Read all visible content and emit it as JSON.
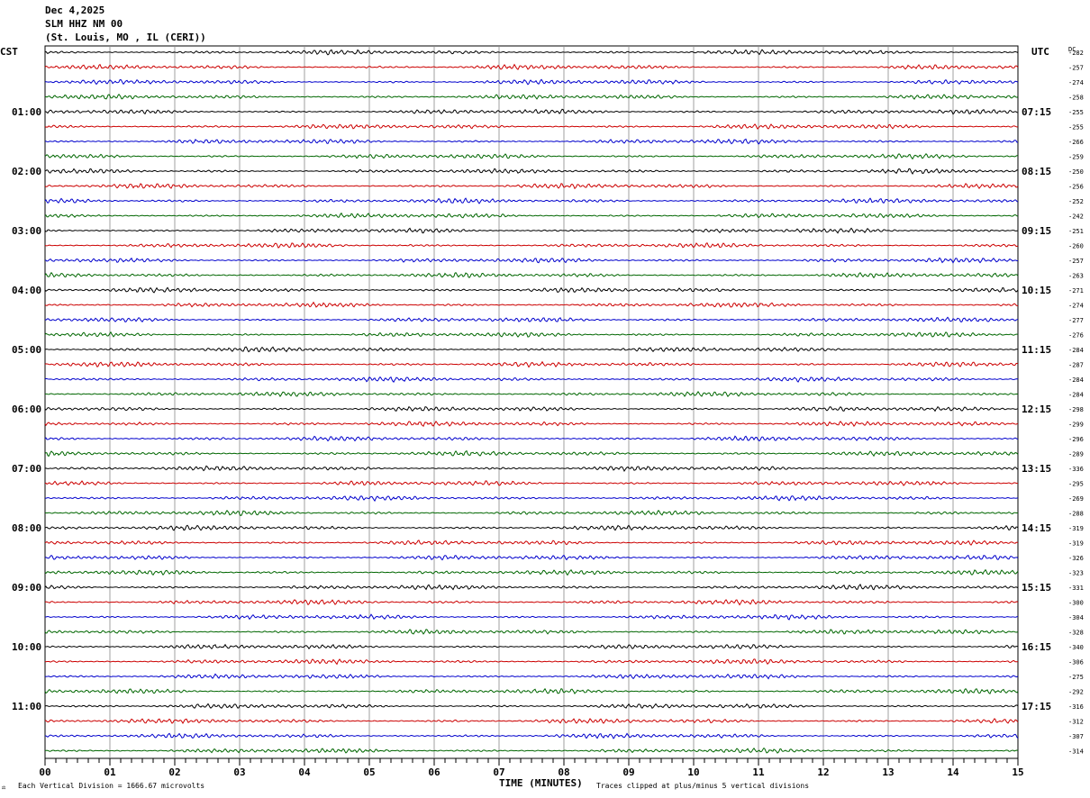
{
  "header": {
    "date": "Dec 4,2025",
    "station": "SLM HHZ NM 00",
    "location": "(St. Louis, MO , IL (CERI))"
  },
  "footer": {
    "scale_note": "Each Vertical Division = 1666.67 microvolts",
    "clip_note": "Traces clipped at plus/minus 5 vertical divisions",
    "mark": "⚖"
  },
  "chart_data": {
    "type": "line",
    "title": "",
    "xlabel": "TIME (MINUTES)",
    "left_axis_label": "CST",
    "right_axis_label": "UTC",
    "dc_label": "DC",
    "xlim": [
      0,
      15
    ],
    "x_ticks": [
      "00",
      "01",
      "02",
      "03",
      "04",
      "05",
      "06",
      "07",
      "08",
      "09",
      "10",
      "11",
      "12",
      "13",
      "14",
      "15"
    ],
    "trace_minutes": 15,
    "trace_colors": [
      "#000000",
      "#cc0000",
      "#0000cc",
      "#006600"
    ],
    "left_hour_labels": [
      "01:00",
      "02:00",
      "03:00",
      "04:00",
      "05:00",
      "06:00",
      "07:00",
      "08:00",
      "09:00",
      "10:00",
      "11:00"
    ],
    "right_hour_labels": [
      "07:15",
      "08:15",
      "09:15",
      "10:15",
      "11:15",
      "12:15",
      "13:15",
      "14:15",
      "15:15",
      "16:15",
      "17:15"
    ],
    "dc_values": [
      -282,
      -257,
      -274,
      -258,
      -255,
      -255,
      -266,
      -259,
      -250,
      -256,
      -252,
      -242,
      -251,
      -260,
      -257,
      -263,
      -271,
      -274,
      -277,
      -276,
      -284,
      -287,
      -284,
      -284,
      -298,
      -299,
      -296,
      -289,
      -336,
      -295,
      -269,
      -288,
      -319,
      -319,
      -326,
      -323,
      -331,
      -300,
      -304,
      -328,
      -340,
      -306,
      -275,
      -292,
      -316,
      -312,
      -307,
      -314
    ]
  }
}
